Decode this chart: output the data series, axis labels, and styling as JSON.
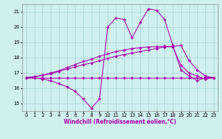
{
  "xlabel": "Windchill (Refroidissement éolien,°C)",
  "background_color": "#d0f0f0",
  "grid_color": "#a0d0d0",
  "line_color": "#aa00aa",
  "xlim": [
    -0.5,
    23.5
  ],
  "ylim": [
    14.5,
    21.5
  ],
  "xticks": [
    0,
    1,
    2,
    3,
    4,
    5,
    6,
    7,
    8,
    9,
    10,
    11,
    12,
    13,
    14,
    15,
    16,
    17,
    18,
    19,
    20,
    21,
    22,
    23
  ],
  "yticks": [
    15,
    16,
    17,
    18,
    19,
    20,
    21
  ],
  "series": [
    [
      16.7,
      16.7,
      16.6,
      16.5,
      16.3,
      16.1,
      15.8,
      15.3,
      14.7,
      15.3,
      20.0,
      20.6,
      20.5,
      19.3,
      20.3,
      21.2,
      21.1,
      20.5,
      18.8,
      17.2,
      16.8,
      16.5,
      16.7,
      16.7
    ],
    [
      16.7,
      16.7,
      16.7,
      16.7,
      16.7,
      16.7,
      16.7,
      16.7,
      16.7,
      16.7,
      16.7,
      16.7,
      16.7,
      16.7,
      16.7,
      16.7,
      16.7,
      16.7,
      16.7,
      16.7,
      16.7,
      16.7,
      16.7,
      16.7
    ],
    [
      16.7,
      16.75,
      16.85,
      16.95,
      17.1,
      17.25,
      17.4,
      17.55,
      17.65,
      17.8,
      17.95,
      18.1,
      18.2,
      18.3,
      18.4,
      18.5,
      18.6,
      18.7,
      18.75,
      18.8,
      17.8,
      17.2,
      16.8,
      16.7
    ],
    [
      16.7,
      16.75,
      16.85,
      17.0,
      17.15,
      17.35,
      17.55,
      17.75,
      17.9,
      18.1,
      18.25,
      18.4,
      18.5,
      18.6,
      18.65,
      18.7,
      18.72,
      18.75,
      18.7,
      17.5,
      17.0,
      16.8,
      16.6,
      16.7
    ]
  ],
  "marker": "D",
  "markersize": 2.0,
  "linewidth": 0.8,
  "tick_fontsize": 5.0,
  "label_fontsize": 5.5
}
